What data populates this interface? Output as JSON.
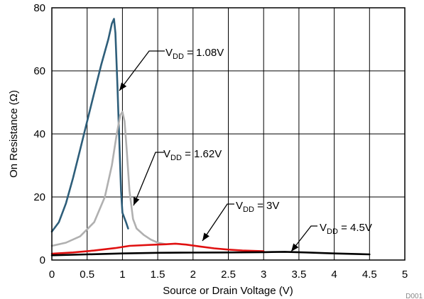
{
  "chart_data": {
    "type": "line",
    "xlabel": "Source or Drain Voltage (V)",
    "ylabel": "On Resistance (Ω)",
    "xlim": [
      0,
      5
    ],
    "ylim": [
      0,
      80
    ],
    "x_ticks": [
      "0",
      "0.5",
      "1",
      "1.5",
      "2",
      "2.5",
      "3",
      "3.5",
      "4",
      "4.5",
      "5"
    ],
    "y_ticks": [
      "0",
      "20",
      "40",
      "60",
      "80"
    ],
    "grid": true,
    "legend": "inline annotations with arrows",
    "footer_id": "D001",
    "series": [
      {
        "label_prefix": "V",
        "label_sub": "DD",
        "label_suffix": " = 1.08V",
        "color": "#2e5e7a",
        "points": [
          [
            0,
            9
          ],
          [
            0.1,
            12
          ],
          [
            0.2,
            18
          ],
          [
            0.3,
            26
          ],
          [
            0.4,
            35
          ],
          [
            0.5,
            44
          ],
          [
            0.6,
            53
          ],
          [
            0.7,
            62
          ],
          [
            0.8,
            70
          ],
          [
            0.85,
            75
          ],
          [
            0.88,
            76.5
          ],
          [
            0.9,
            72
          ],
          [
            0.93,
            55
          ],
          [
            0.96,
            35
          ],
          [
            0.98,
            22
          ],
          [
            1.0,
            15
          ],
          [
            1.05,
            12
          ],
          [
            1.08,
            10
          ]
        ]
      },
      {
        "label_prefix": "V",
        "label_sub": "DD",
        "label_suffix": " = 1.62V",
        "color": "#b0b0b0",
        "points": [
          [
            0,
            4.5
          ],
          [
            0.2,
            5.5
          ],
          [
            0.4,
            7.5
          ],
          [
            0.6,
            12
          ],
          [
            0.75,
            20
          ],
          [
            0.85,
            30
          ],
          [
            0.92,
            40
          ],
          [
            0.97,
            46
          ],
          [
            1.0,
            47
          ],
          [
            1.03,
            44
          ],
          [
            1.06,
            35
          ],
          [
            1.1,
            22
          ],
          [
            1.15,
            13
          ],
          [
            1.2,
            10
          ],
          [
            1.3,
            8
          ],
          [
            1.4,
            6.5
          ],
          [
            1.5,
            5.5
          ],
          [
            1.62,
            5
          ]
        ]
      },
      {
        "label_prefix": "V",
        "label_sub": "DD",
        "label_suffix": " = 3V",
        "color": "#e01010",
        "points": [
          [
            0,
            2
          ],
          [
            0.3,
            2.4
          ],
          [
            0.6,
            3
          ],
          [
            0.9,
            3.8
          ],
          [
            1.1,
            4.5
          ],
          [
            1.4,
            4.8
          ],
          [
            1.6,
            5
          ],
          [
            1.75,
            5.2
          ],
          [
            1.9,
            4.9
          ],
          [
            2.1,
            4.3
          ],
          [
            2.3,
            3.7
          ],
          [
            2.5,
            3.3
          ],
          [
            2.7,
            3
          ],
          [
            2.85,
            2.9
          ],
          [
            3.0,
            2.8
          ]
        ]
      },
      {
        "label_prefix": "V",
        "label_sub": "DD",
        "label_suffix": " = 4.5V",
        "color": "#000000",
        "points": [
          [
            0,
            1.5
          ],
          [
            0.5,
            1.8
          ],
          [
            1.0,
            2.1
          ],
          [
            1.5,
            2.3
          ],
          [
            2.0,
            2.35
          ],
          [
            2.5,
            2.4
          ],
          [
            3.0,
            2.5
          ],
          [
            3.3,
            2.6
          ],
          [
            3.6,
            2.4
          ],
          [
            4.0,
            2.1
          ],
          [
            4.5,
            1.8
          ]
        ]
      }
    ]
  }
}
